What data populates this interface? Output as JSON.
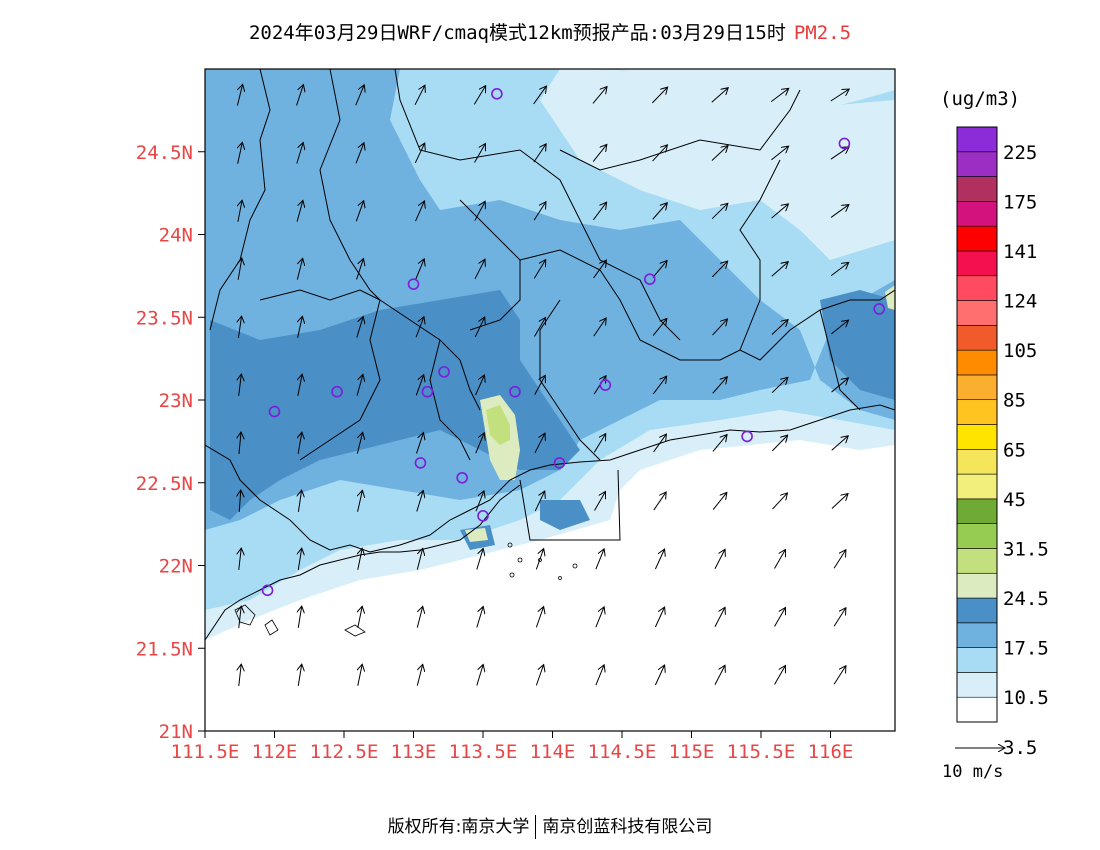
{
  "title": {
    "main": "2024年03月29日WRF/cmaq模式12km预报产品:03月29日15时",
    "pollutant": "PM2.5"
  },
  "axes": {
    "lat_labels": [
      "24.5N",
      "24N",
      "23.5N",
      "23N",
      "22.5N",
      "22N",
      "21.5N",
      "21N"
    ],
    "lon_labels": [
      "111.5E",
      "112E",
      "112.5E",
      "113E",
      "113.5E",
      "114E",
      "114.5E",
      "115E",
      "115.5E",
      "116E"
    ]
  },
  "legend": {
    "unit": "(ug/m3)",
    "levels": [
      "225",
      "175",
      "141",
      "124",
      "105",
      "85",
      "65",
      "45",
      "31.5",
      "24.5",
      "17.5",
      "10.5",
      "3.5"
    ],
    "colors_bottom_to_top": [
      "#ffffff",
      "#d8effa",
      "#a8dcf4",
      "#6fb2df",
      "#4a8fc6",
      "#dcecc0",
      "#c3e07f",
      "#96cc52",
      "#6faa34",
      "#f2f07a",
      "#f5e55a",
      "#ffe400",
      "#ffc41f",
      "#fcae2f",
      "#ff8c00",
      "#f15a2a",
      "#ff6f6f",
      "#ff4a5f",
      "#f4104f",
      "#ff0000",
      "#d4127e",
      "#b03060",
      "#9c2ec4",
      "#8c2bd8"
    ]
  },
  "wind_reference": "10 m/s",
  "credit": {
    "left": "版权所有:南京大学",
    "right": "南京创蓝科技有限公司"
  },
  "stations": [
    {
      "lon": 113.6,
      "lat": 24.85
    },
    {
      "lon": 116.1,
      "lat": 24.55
    },
    {
      "lon": 113.0,
      "lat": 23.7
    },
    {
      "lon": 114.7,
      "lat": 23.73
    },
    {
      "lon": 116.35,
      "lat": 23.55
    },
    {
      "lon": 113.22,
      "lat": 23.17
    },
    {
      "lon": 112.45,
      "lat": 23.05
    },
    {
      "lon": 113.1,
      "lat": 23.05
    },
    {
      "lon": 113.73,
      "lat": 23.05
    },
    {
      "lon": 114.38,
      "lat": 23.09
    },
    {
      "lon": 112.0,
      "lat": 22.93
    },
    {
      "lon": 115.4,
      "lat": 22.78
    },
    {
      "lon": 113.05,
      "lat": 22.62
    },
    {
      "lon": 113.35,
      "lat": 22.53
    },
    {
      "lon": 114.05,
      "lat": 22.62
    },
    {
      "lon": 113.5,
      "lat": 22.3
    },
    {
      "lon": 111.95,
      "lat": 21.85
    }
  ]
}
